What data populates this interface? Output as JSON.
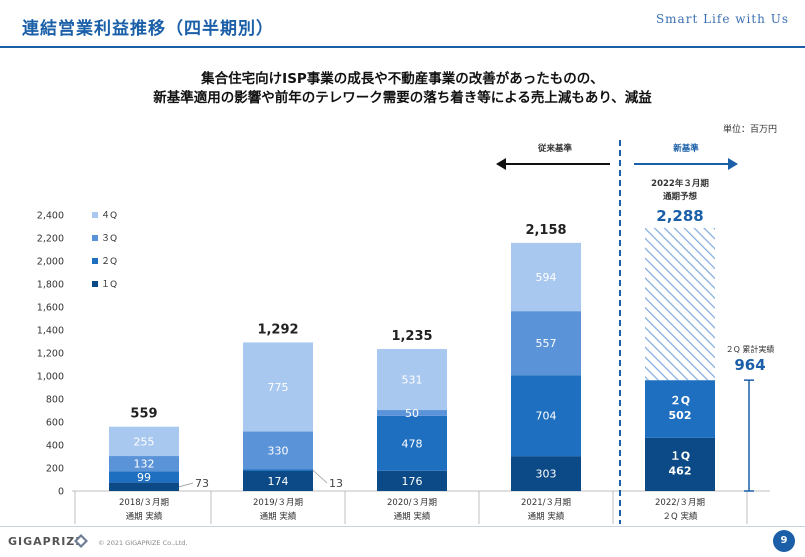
{
  "page": {
    "title": "連結営業利益推移（四半期別）",
    "tagline": "Smart Life with Us",
    "headline_line1": "集合住宅向けISP事業の成長や不動産事業の改善があったものの、",
    "headline_line2": "新基準適用の影響や前年のテレワーク需要の落ち着き等による売上減もあり、減益",
    "unit": "単位：百万円",
    "footer_logo": "GIGAPRIZE",
    "copyright": "© 2021 GIGAPRIZE Co.,Ltd.",
    "page_number": "9"
  },
  "annotations": {
    "old_standard": "従来基準",
    "new_standard": "新基準",
    "forecast_label_line1": "2022年３月期",
    "forecast_label_line2": "通期予想",
    "forecast_value": "2,288",
    "cumulative_label": "２Q 累計実績",
    "cumulative_value": "964"
  },
  "colors": {
    "q1": "#0b4a86",
    "q2": "#1f6fc0",
    "q3": "#5b93d9",
    "q4": "#a9c8ef",
    "accent": "#1a5fa8",
    "axis": "#bfbfbf",
    "q2_highlight": "#1a6fcf"
  },
  "chart_data": {
    "type": "bar",
    "stacked": true,
    "title": "連結営業利益推移（四半期別）",
    "ylabel": "百万円",
    "ylim": [
      0,
      2400
    ],
    "yticks": [
      0,
      200,
      400,
      600,
      800,
      1000,
      1200,
      1400,
      1600,
      1800,
      2000,
      2200,
      2400
    ],
    "ytick_labels": [
      "0",
      "200",
      "400",
      "600",
      "800",
      "1,000",
      "1,200",
      "1,400",
      "1,600",
      "1,800",
      "2,000",
      "2,200",
      "2,400"
    ],
    "categories": [
      [
        "2018/３月期",
        "通期 実績"
      ],
      [
        "2019/３月期",
        "通期 実績"
      ],
      [
        "2020/３月期",
        "通期 実績"
      ],
      [
        "2021/３月期",
        "通期 実績"
      ],
      [
        "2022/３月期",
        "２Q 実績"
      ]
    ],
    "series": [
      {
        "name": "１Q",
        "values": [
          73,
          174,
          176,
          303,
          462
        ]
      },
      {
        "name": "２Q",
        "values": [
          99,
          13,
          478,
          704,
          502
        ]
      },
      {
        "name": "３Q",
        "values": [
          132,
          330,
          50,
          557,
          null
        ]
      },
      {
        "name": "４Q",
        "values": [
          255,
          775,
          531,
          594,
          null
        ]
      }
    ],
    "value_labels": [
      [
        "73",
        "174",
        "176",
        "303",
        "462"
      ],
      [
        "99",
        "13",
        "478",
        "704",
        "502"
      ],
      [
        "132",
        "330",
        "50",
        "557",
        ""
      ],
      [
        "255",
        "775",
        "531",
        "594",
        ""
      ]
    ],
    "totals": [
      559,
      1292,
      1235,
      2158,
      null
    ],
    "total_labels": [
      "559",
      "1,292",
      "1,235",
      "2,158",
      ""
    ],
    "forecast": {
      "category_index": 4,
      "value": 2288
    },
    "fy2022_segment_prefixes": [
      "１Q",
      "２Q"
    ],
    "legend": [
      "４Q",
      "３Q",
      "２Q",
      "１Q"
    ],
    "legend_position": "top-left"
  }
}
